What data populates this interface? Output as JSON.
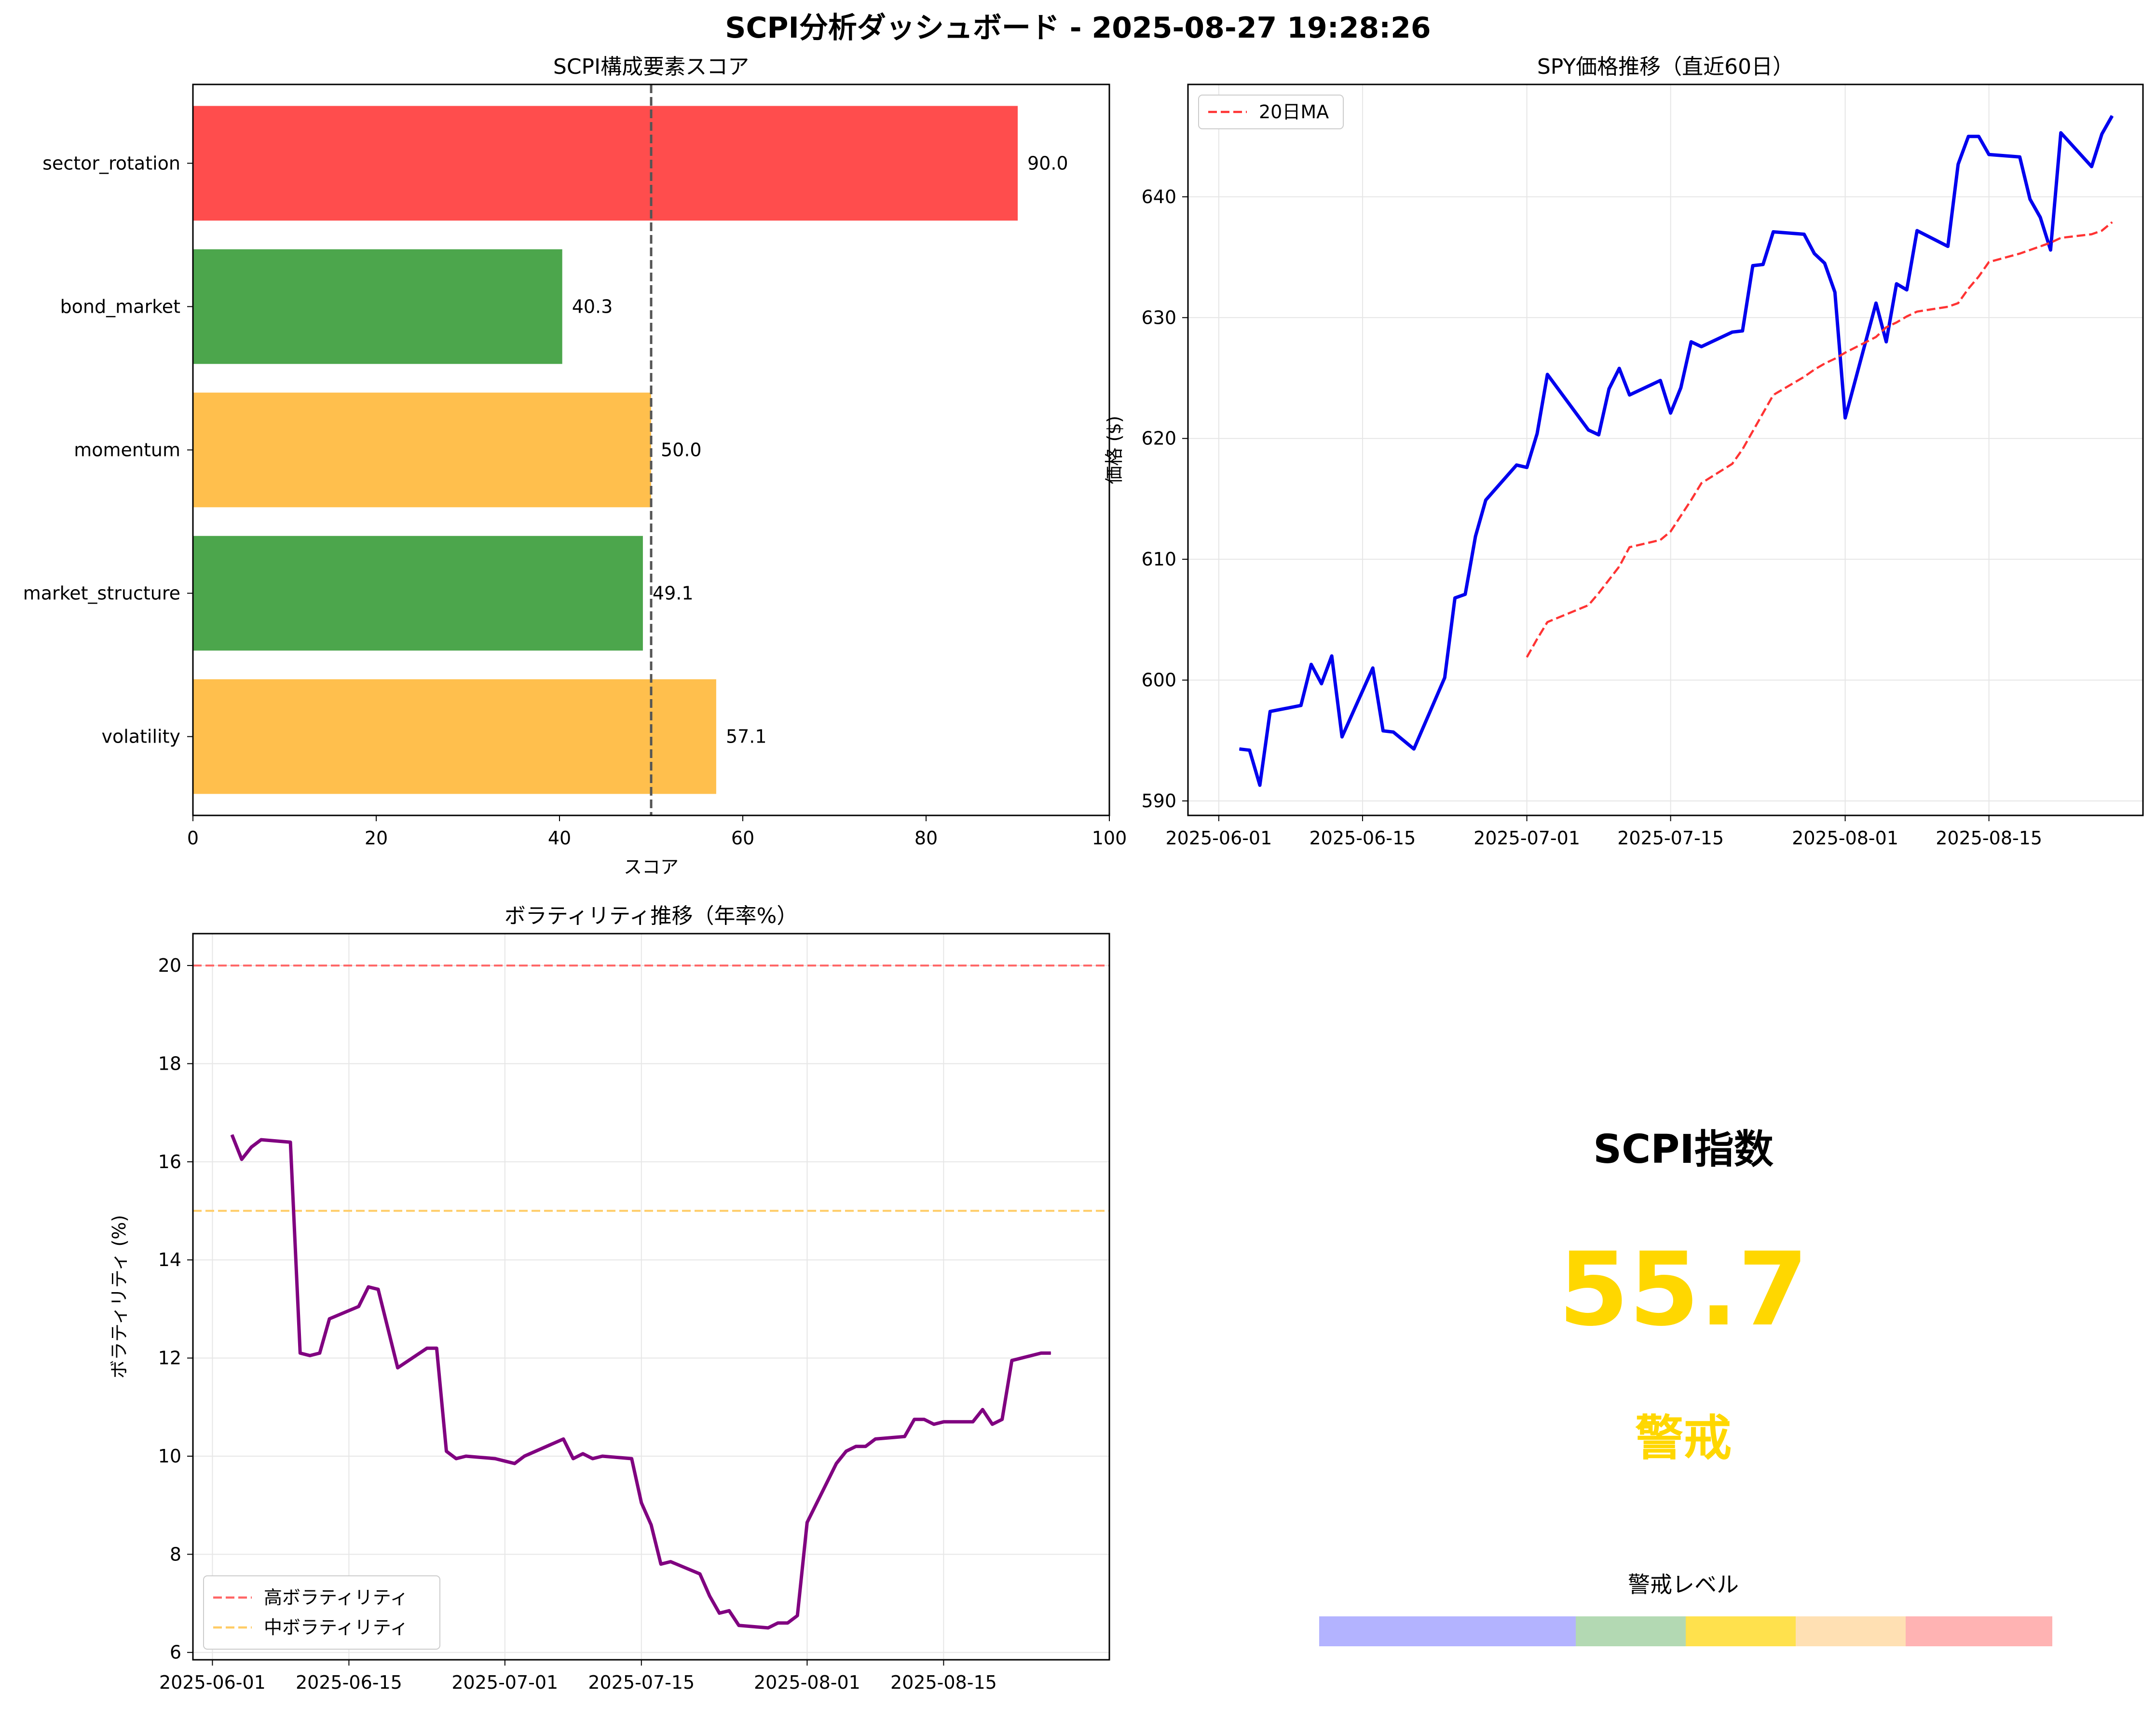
{
  "suptitle": "SCPI分析ダッシュボード - 2025-08-27 19:28:26",
  "chart_data": [
    {
      "id": "components",
      "type": "bar",
      "orientation": "horizontal",
      "title": "SCPI構成要素スコア",
      "xlabel": "スコア",
      "ylabel": "",
      "categories": [
        "sector_rotation",
        "bond_market",
        "momentum",
        "market_structure",
        "volatility"
      ],
      "values": [
        90.0,
        40.3,
        50.0,
        49.1,
        57.1
      ],
      "value_labels": [
        "90.0",
        "40.3",
        "50.0",
        "49.1",
        "57.1"
      ],
      "colors": [
        "#ff4d4d",
        "#4ca64c",
        "#ffbf4d",
        "#4ca64c",
        "#ffbf4d"
      ],
      "xlim": [
        0,
        100
      ],
      "xticks": [
        0,
        20,
        40,
        60,
        80,
        100
      ],
      "reference_line": {
        "x": 50,
        "style": "dashed",
        "color": "#555555"
      },
      "grid": false
    },
    {
      "id": "spy",
      "type": "line",
      "title": "SPY価格推移（直近60日）",
      "xlabel": "",
      "ylabel": "価格 ($)",
      "xlim": [
        "2025-05-29",
        "2025-08-30"
      ],
      "ylim": [
        588.8,
        649.3
      ],
      "xticks": [
        "2025-06-01",
        "2025-06-15",
        "2025-07-01",
        "2025-07-15",
        "2025-08-01",
        "2025-08-15"
      ],
      "yticks": [
        590,
        600,
        610,
        620,
        630,
        640
      ],
      "grid": true,
      "legend": "upper-left",
      "series": [
        {
          "name": "",
          "style": "solid",
          "color": "#0000ee",
          "x": [
            "2025-06-03",
            "2025-06-04",
            "2025-06-05",
            "2025-06-06",
            "2025-06-09",
            "2025-06-10",
            "2025-06-11",
            "2025-06-12",
            "2025-06-13",
            "2025-06-16",
            "2025-06-17",
            "2025-06-18",
            "2025-06-20",
            "2025-06-23",
            "2025-06-24",
            "2025-06-25",
            "2025-06-26",
            "2025-06-27",
            "2025-06-30",
            "2025-07-01",
            "2025-07-02",
            "2025-07-03",
            "2025-07-07",
            "2025-07-08",
            "2025-07-09",
            "2025-07-10",
            "2025-07-11",
            "2025-07-14",
            "2025-07-15",
            "2025-07-16",
            "2025-07-17",
            "2025-07-18",
            "2025-07-21",
            "2025-07-22",
            "2025-07-23",
            "2025-07-24",
            "2025-07-25",
            "2025-07-28",
            "2025-07-29",
            "2025-07-30",
            "2025-07-31",
            "2025-08-01",
            "2025-08-04",
            "2025-08-05",
            "2025-08-06",
            "2025-08-07",
            "2025-08-08",
            "2025-08-11",
            "2025-08-12",
            "2025-08-13",
            "2025-08-14",
            "2025-08-15",
            "2025-08-18",
            "2025-08-19",
            "2025-08-20",
            "2025-08-21",
            "2025-08-22",
            "2025-08-25",
            "2025-08-26",
            "2025-08-27"
          ],
          "values": [
            594.3,
            594.2,
            591.3,
            597.4,
            597.9,
            601.3,
            599.7,
            602.0,
            595.3,
            601.0,
            595.8,
            595.7,
            594.3,
            600.2,
            606.8,
            607.1,
            611.9,
            614.9,
            617.8,
            617.6,
            620.4,
            625.3,
            620.7,
            620.3,
            624.1,
            625.8,
            623.6,
            624.8,
            622.1,
            624.2,
            628.0,
            627.6,
            628.8,
            628.9,
            634.3,
            634.4,
            637.1,
            636.9,
            635.3,
            634.5,
            632.1,
            621.7,
            631.2,
            628.0,
            632.8,
            632.3,
            637.2,
            635.9,
            642.7,
            645.0,
            645.0,
            643.5,
            643.3,
            639.8,
            638.3,
            635.6,
            645.3,
            642.5,
            645.2,
            646.7
          ]
        },
        {
          "name": "20日MA",
          "style": "dashed",
          "color": "#ff3333",
          "x": [
            "2025-07-01",
            "2025-07-02",
            "2025-07-03",
            "2025-07-07",
            "2025-07-08",
            "2025-07-09",
            "2025-07-10",
            "2025-07-11",
            "2025-07-14",
            "2025-07-15",
            "2025-07-16",
            "2025-07-17",
            "2025-07-18",
            "2025-07-21",
            "2025-07-22",
            "2025-07-23",
            "2025-07-24",
            "2025-07-25",
            "2025-07-28",
            "2025-07-29",
            "2025-07-30",
            "2025-07-31",
            "2025-08-01",
            "2025-08-04",
            "2025-08-05",
            "2025-08-06",
            "2025-08-07",
            "2025-08-08",
            "2025-08-11",
            "2025-08-12",
            "2025-08-13",
            "2025-08-14",
            "2025-08-15",
            "2025-08-18",
            "2025-08-19",
            "2025-08-20",
            "2025-08-21",
            "2025-08-22",
            "2025-08-25",
            "2025-08-26",
            "2025-08-27"
          ],
          "values": [
            601.9,
            603.4,
            604.8,
            606.2,
            607.2,
            608.3,
            609.4,
            611.0,
            611.6,
            612.3,
            613.6,
            614.9,
            616.3,
            617.9,
            619.1,
            620.6,
            622.1,
            623.6,
            625.1,
            625.7,
            626.2,
            626.6,
            627.1,
            628.4,
            629.2,
            629.6,
            630.1,
            630.5,
            630.9,
            631.2,
            632.4,
            633.4,
            634.6,
            635.3,
            635.6,
            635.9,
            636.2,
            636.6,
            636.9,
            637.2,
            637.9
          ]
        }
      ]
    },
    {
      "id": "volatility",
      "type": "line",
      "title": "ボラティリティ推移（年率%）",
      "xlabel": "",
      "ylabel": "ボラティリティ (%)",
      "xlim": [
        "2025-05-30",
        "2025-09-01"
      ],
      "ylim": [
        5.85,
        20.65
      ],
      "xticks": [
        "2025-06-01",
        "2025-06-15",
        "2025-07-01",
        "2025-07-15",
        "2025-08-01",
        "2025-08-15"
      ],
      "yticks": [
        6,
        8,
        10,
        12,
        14,
        16,
        18,
        20
      ],
      "grid": true,
      "legend": "lower-left",
      "reference_lines": [
        {
          "name": "高ボラティリティ",
          "y": 20,
          "color": "#ff6666",
          "style": "dashed"
        },
        {
          "name": "中ボラティリティ",
          "y": 15,
          "color": "#ffcc66",
          "style": "dashed"
        }
      ],
      "series": [
        {
          "name": "",
          "style": "solid",
          "color": "#800080",
          "x": [
            "2025-06-03",
            "2025-06-04",
            "2025-06-05",
            "2025-06-06",
            "2025-06-09",
            "2025-06-10",
            "2025-06-11",
            "2025-06-12",
            "2025-06-13",
            "2025-06-16",
            "2025-06-17",
            "2025-06-18",
            "2025-06-19",
            "2025-06-20",
            "2025-06-23",
            "2025-06-24",
            "2025-06-25",
            "2025-06-26",
            "2025-06-27",
            "2025-06-30",
            "2025-07-01",
            "2025-07-02",
            "2025-07-03",
            "2025-07-07",
            "2025-07-08",
            "2025-07-09",
            "2025-07-10",
            "2025-07-11",
            "2025-07-14",
            "2025-07-15",
            "2025-07-16",
            "2025-07-17",
            "2025-07-18",
            "2025-07-21",
            "2025-07-22",
            "2025-07-23",
            "2025-07-24",
            "2025-07-25",
            "2025-07-28",
            "2025-07-29",
            "2025-07-30",
            "2025-07-31",
            "2025-08-01",
            "2025-08-04",
            "2025-08-05",
            "2025-08-06",
            "2025-08-07",
            "2025-08-08",
            "2025-08-11",
            "2025-08-12",
            "2025-08-13",
            "2025-08-14",
            "2025-08-15",
            "2025-08-18",
            "2025-08-19",
            "2025-08-20",
            "2025-08-21",
            "2025-08-22",
            "2025-08-25",
            "2025-08-26"
          ],
          "values": [
            16.55,
            16.05,
            16.3,
            16.45,
            16.4,
            12.1,
            12.05,
            12.1,
            12.8,
            13.05,
            13.45,
            13.4,
            12.6,
            11.8,
            12.2,
            12.2,
            10.1,
            9.95,
            10.0,
            9.95,
            9.9,
            9.85,
            10.0,
            10.35,
            9.95,
            10.05,
            9.95,
            10.0,
            9.95,
            9.05,
            8.6,
            7.8,
            7.85,
            7.6,
            7.15,
            6.8,
            6.85,
            6.55,
            6.5,
            6.6,
            6.6,
            6.75,
            8.65,
            9.85,
            10.1,
            10.2,
            10.2,
            10.35,
            10.4,
            10.75,
            10.75,
            10.65,
            10.7,
            10.7,
            10.95,
            10.65,
            10.75,
            11.95,
            12.1,
            12.1
          ]
        }
      ]
    }
  ],
  "gauge": {
    "title": "SCPI指数",
    "value": "55.7",
    "level_text": "警戒",
    "value_color": "#ffd700",
    "level_label": "警戒レベル",
    "level_bands": [
      {
        "from": 0,
        "to": 35,
        "color": "#b3b3ff"
      },
      {
        "from": 35,
        "to": 50,
        "color": "#b3d9b3"
      },
      {
        "from": 50,
        "to": 65,
        "color": "#ffe14d"
      },
      {
        "from": 65,
        "to": 80,
        "color": "#ffe0b3"
      },
      {
        "from": 80,
        "to": 100,
        "color": "#ffb3b3"
      }
    ]
  }
}
